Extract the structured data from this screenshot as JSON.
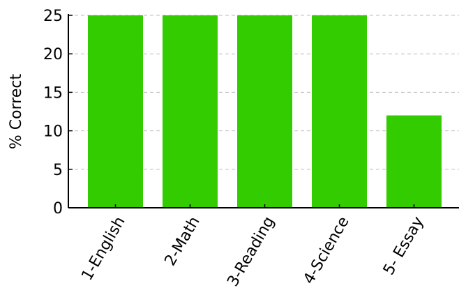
{
  "chart_data": {
    "type": "bar",
    "title": "",
    "xlabel": "",
    "ylabel": "% Correct",
    "categories": [
      "1-English",
      "2-Math",
      "3-Reading",
      "4-Science",
      "5- Essay"
    ],
    "values": [
      25,
      25,
      25,
      25,
      12
    ],
    "ylim": [
      0,
      25
    ],
    "yticks": [
      0,
      5,
      10,
      15,
      20,
      25
    ],
    "grid": true,
    "legend": "none",
    "bar_color": "#33cc00",
    "grid_color": "#bbbbbb",
    "axis_color": "#000000"
  }
}
